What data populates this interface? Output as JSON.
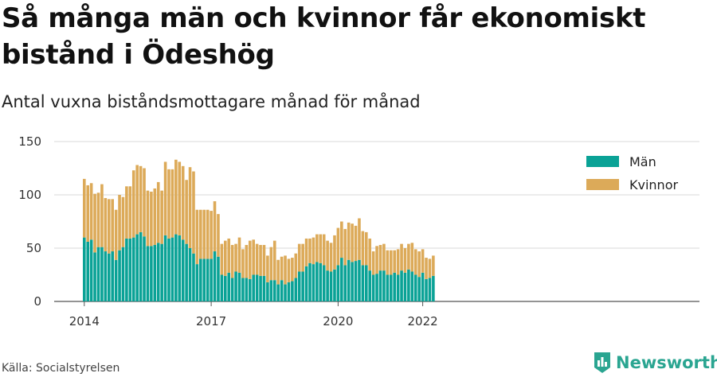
{
  "title": "Så många män och kvinnor får ekonomiskt bistånd i Ödeshög",
  "subtitle": "Antal vuxna biståndsmottagare månad för månad",
  "source": "Källa: Socialstyrelsen",
  "brand": {
    "name": "Newsworthy",
    "icon": "newsworthy-logo-icon",
    "color": "#2aa591"
  },
  "colors": {
    "men": "#0aa296",
    "women": "#dcaa59"
  },
  "chart_data": {
    "type": "bar",
    "stacked": true,
    "start_month": "2014-01",
    "x_ticks": [
      "2014",
      "2017",
      "2020",
      "2022"
    ],
    "ylim": [
      0,
      150
    ],
    "y_ticks": [
      0,
      50,
      100,
      150
    ],
    "legend_position": "top-right",
    "grid": true,
    "series": [
      {
        "name": "Män",
        "color": "#0aa296",
        "values": [
          60,
          56,
          58,
          46,
          51,
          51,
          47,
          45,
          47,
          39,
          48,
          51,
          59,
          59,
          60,
          63,
          65,
          61,
          52,
          52,
          53,
          55,
          54,
          62,
          59,
          60,
          63,
          62,
          58,
          54,
          50,
          45,
          35,
          40,
          40,
          40,
          40,
          47,
          42,
          25,
          24,
          27,
          22,
          28,
          27,
          22,
          22,
          21,
          25,
          25,
          24,
          24,
          18,
          20,
          20,
          16,
          20,
          16,
          18,
          19,
          22,
          28,
          28,
          33,
          36,
          35,
          37,
          36,
          34,
          29,
          28,
          30,
          34,
          41,
          34,
          39,
          37,
          38,
          39,
          34,
          34,
          29,
          25,
          26,
          29,
          29,
          25,
          25,
          27,
          25,
          29,
          27,
          30,
          28,
          25,
          23,
          27,
          21,
          22,
          24
        ]
      },
      {
        "name": "Kvinnor",
        "color": "#dcaa59",
        "values": [
          55,
          53,
          53,
          55,
          51,
          59,
          50,
          51,
          49,
          47,
          52,
          47,
          49,
          49,
          63,
          65,
          62,
          64,
          52,
          51,
          53,
          57,
          50,
          69,
          65,
          64,
          70,
          69,
          69,
          60,
          76,
          77,
          51,
          46,
          46,
          46,
          45,
          47,
          40,
          29,
          33,
          32,
          31,
          26,
          33,
          27,
          31,
          36,
          33,
          29,
          29,
          29,
          25,
          31,
          37,
          23,
          22,
          27,
          22,
          22,
          23,
          26,
          26,
          26,
          23,
          25,
          26,
          27,
          29,
          28,
          27,
          32,
          35,
          34,
          34,
          35,
          36,
          33,
          39,
          32,
          31,
          30,
          22,
          26,
          24,
          25,
          23,
          23,
          21,
          24,
          25,
          23,
          24,
          27,
          24,
          24,
          22,
          20,
          18,
          19
        ]
      }
    ]
  }
}
